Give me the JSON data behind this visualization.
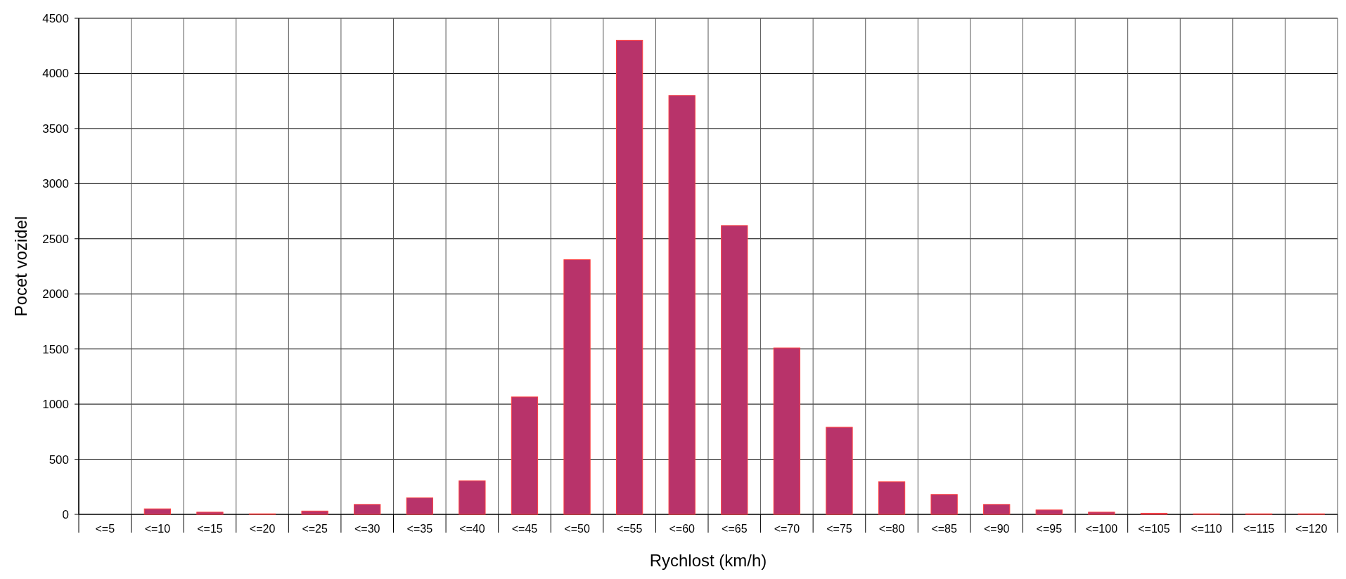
{
  "chart_data": {
    "type": "bar",
    "xlabel": "Rychlost (km/h)",
    "ylabel": "Pocet vozidel",
    "categories": [
      "<=5",
      "<=10",
      "<=15",
      "<=20",
      "<=25",
      "<=30",
      "<=35",
      "<=40",
      "<=45",
      "<=50",
      "<=55",
      "<=60",
      "<=65",
      "<=70",
      "<=75",
      "<=80",
      "<=85",
      "<=90",
      "<=95",
      "<=100",
      "<=105",
      "<=110",
      "<=115",
      "<=120"
    ],
    "values": [
      0,
      50,
      20,
      5,
      30,
      90,
      150,
      305,
      1065,
      2310,
      4300,
      3800,
      2620,
      1510,
      790,
      295,
      180,
      90,
      40,
      20,
      10,
      5,
      5,
      5
    ],
    "color": "#b8336a",
    "ylim": [
      0,
      4500
    ],
    "yticks": [
      0,
      500,
      1000,
      1500,
      2000,
      2500,
      3000,
      3500,
      4000,
      4500
    ],
    "grid": true
  }
}
